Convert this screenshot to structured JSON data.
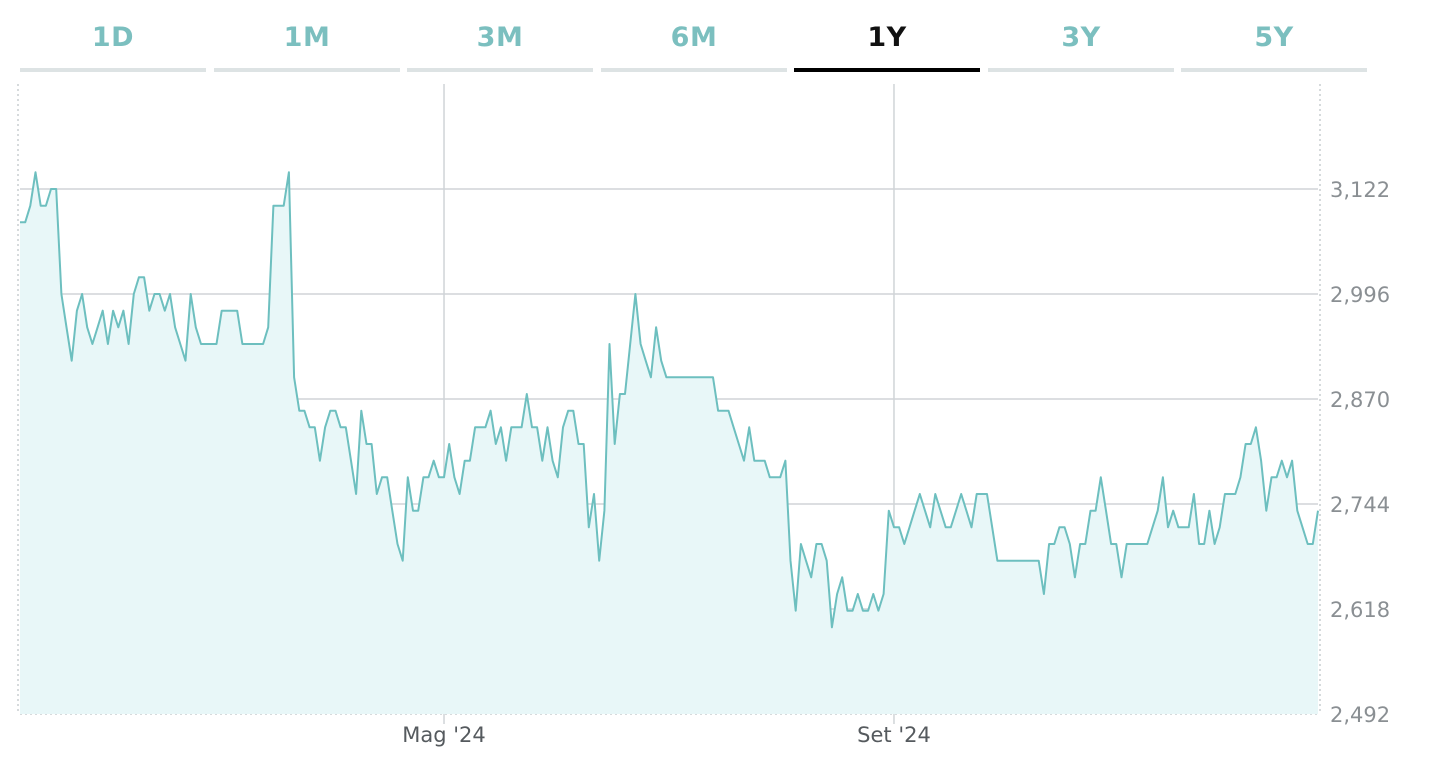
{
  "tabs": {
    "items": [
      {
        "label": "1D"
      },
      {
        "label": "1M"
      },
      {
        "label": "3M"
      },
      {
        "label": "6M"
      },
      {
        "label": "1Y"
      },
      {
        "label": "3Y"
      },
      {
        "label": "5Y"
      }
    ],
    "active_index": 4
  },
  "colors": {
    "line": "#6dbfbf",
    "fill": "#e8f7f8",
    "grid": "#d0d4d7",
    "active_tab": "#000000",
    "tab_text": "#7bbfbf"
  },
  "chart_data": {
    "type": "area",
    "ylim": [
      2492,
      3248
    ],
    "yticks": [
      3122,
      2996,
      2870,
      2744,
      2618,
      2492
    ],
    "ytick_labels": [
      "3,122",
      "2,996",
      "2,870",
      "2,744",
      "2,618",
      "2,492"
    ],
    "xlim": [
      0,
      300
    ],
    "xticks": [
      {
        "x": 98,
        "label": "Mag '24"
      },
      {
        "x": 202,
        "label": "Set '24"
      }
    ],
    "grid": true,
    "series": [
      {
        "values": [
          3082,
          3082,
          3102,
          3142,
          3102,
          3102,
          3122,
          3122,
          2996,
          2956,
          2916,
          2976,
          2996,
          2956,
          2936,
          2956,
          2976,
          2936,
          2976,
          2956,
          2976,
          2936,
          2996,
          3016,
          3016,
          2976,
          2996,
          2996,
          2976,
          2996,
          2956,
          2936,
          2916,
          2996,
          2956,
          2936,
          2936,
          2936,
          2936,
          2976,
          2976,
          2976,
          2976,
          2936,
          2936,
          2936,
          2936,
          2936,
          2956,
          3102,
          3102,
          3102,
          3142,
          2896,
          2856,
          2856,
          2836,
          2836,
          2796,
          2836,
          2856,
          2856,
          2836,
          2836,
          2796,
          2756,
          2856,
          2816,
          2816,
          2756,
          2776,
          2776,
          2736,
          2696,
          2676,
          2776,
          2736,
          2736,
          2776,
          2776,
          2796,
          2776,
          2776,
          2816,
          2776,
          2756,
          2796,
          2796,
          2836,
          2836,
          2836,
          2856,
          2816,
          2836,
          2796,
          2836,
          2836,
          2836,
          2876,
          2836,
          2836,
          2796,
          2836,
          2796,
          2776,
          2836,
          2856,
          2856,
          2816,
          2816,
          2716,
          2756,
          2676,
          2736,
          2936,
          2816,
          2876,
          2876,
          2936,
          2996,
          2936,
          2916,
          2896,
          2956,
          2916,
          2896,
          2896,
          2896,
          2896,
          2896,
          2896,
          2896,
          2896,
          2896,
          2896,
          2856,
          2856,
          2856,
          2836,
          2816,
          2796,
          2836,
          2796,
          2796,
          2796,
          2776,
          2776,
          2776,
          2796,
          2676,
          2616,
          2696,
          2676,
          2656,
          2696,
          2696,
          2676,
          2596,
          2636,
          2656,
          2616,
          2616,
          2636,
          2616,
          2616,
          2636,
          2616,
          2636,
          2736,
          2716,
          2716,
          2696,
          2716,
          2736,
          2756,
          2736,
          2716,
          2756,
          2736,
          2716,
          2716,
          2736,
          2756,
          2736,
          2716,
          2756,
          2756,
          2756,
          2716,
          2676,
          2676,
          2676,
          2676,
          2676,
          2676,
          2676,
          2676,
          2676,
          2636,
          2696,
          2696,
          2716,
          2716,
          2696,
          2656,
          2696,
          2696,
          2736,
          2736,
          2776,
          2736,
          2696,
          2696,
          2656,
          2696,
          2696,
          2696,
          2696,
          2696,
          2716,
          2736,
          2776,
          2716,
          2736,
          2716,
          2716,
          2716,
          2756,
          2696,
          2696,
          2736,
          2696,
          2716,
          2756,
          2756,
          2756,
          2776,
          2816,
          2816,
          2836,
          2796,
          2736,
          2776,
          2776,
          2796,
          2776,
          2796,
          2736,
          2716,
          2696,
          2696,
          2736
        ]
      }
    ]
  }
}
